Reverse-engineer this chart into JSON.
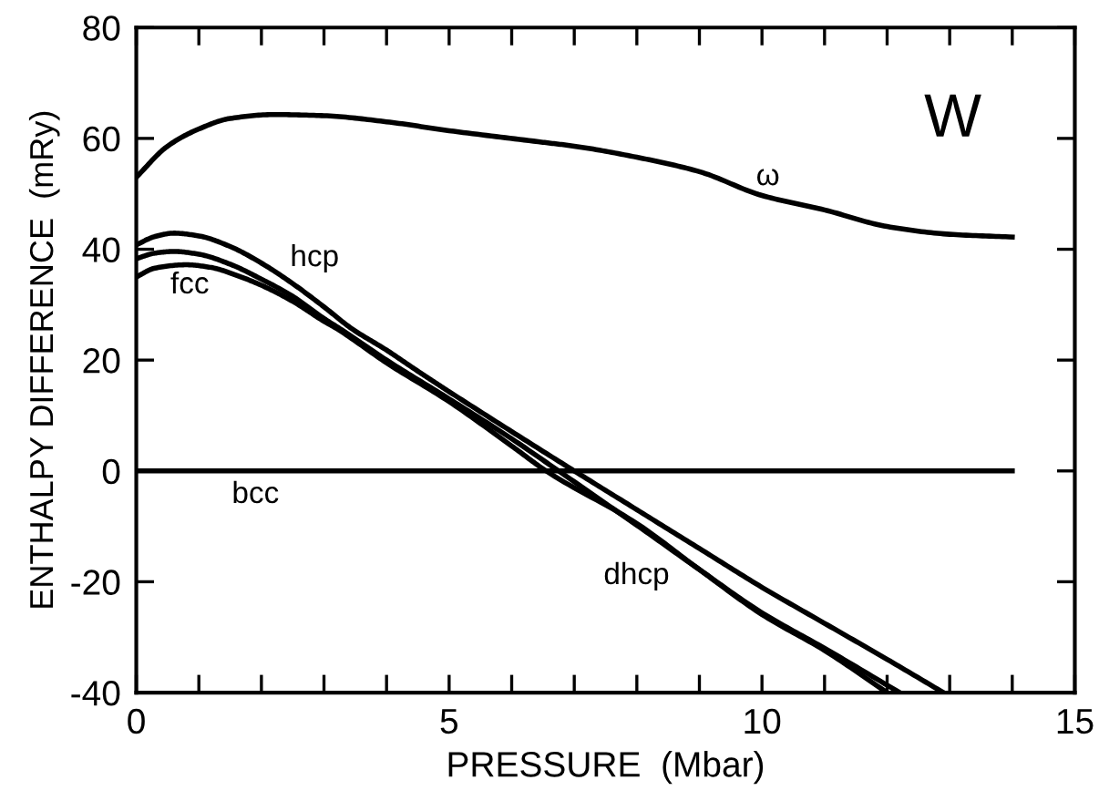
{
  "chart_data": {
    "type": "line",
    "xlabel": "PRESSURE  (Mbar)",
    "ylabel": "ENTHALPY DIFFERENCE  (mRy)",
    "xlim": [
      0,
      15
    ],
    "ylim": [
      -40,
      80
    ],
    "xticks": [
      0,
      {
        "value": 1,
        "label": null
      },
      {
        "value": 2,
        "label": null
      },
      {
        "value": 3,
        "label": null
      },
      {
        "value": 4,
        "label": null
      },
      5,
      {
        "value": 6,
        "label": null
      },
      {
        "value": 7,
        "label": null
      },
      {
        "value": 8,
        "label": null
      },
      {
        "value": 9,
        "label": null
      },
      10,
      {
        "value": 11,
        "label": null
      },
      {
        "value": 12,
        "label": null
      },
      {
        "value": 13,
        "label": null
      },
      {
        "value": 14,
        "label": null
      },
      15
    ],
    "yticks": [
      -40,
      -20,
      0,
      20,
      40,
      60,
      80
    ],
    "grid": false,
    "marker": "none",
    "line_style": "solid",
    "series": [
      {
        "name": "ω",
        "color": "#000000",
        "x": [
          0,
          0.5,
          1,
          1.5,
          2.2,
          3,
          4,
          5,
          6.5,
          7,
          8,
          9,
          10,
          11,
          12,
          13,
          14
        ],
        "values": [
          53,
          58.6,
          61.7,
          63.6,
          64.3,
          64.1,
          63,
          61.4,
          59.3,
          58.6,
          56.6,
          54,
          49.7,
          47.1,
          44.1,
          42.7,
          42.2
        ]
      },
      {
        "name": "hcp",
        "color": "#000000",
        "x": [
          0,
          0.3,
          0.6,
          1,
          1.5,
          2,
          2.5,
          3,
          3.44,
          4,
          4.5,
          5,
          6,
          7,
          8,
          9,
          10,
          11,
          12,
          12.9
        ],
        "values": [
          40.8,
          42.3,
          42.9,
          42.4,
          40.5,
          37.5,
          33.8,
          29.6,
          25.7,
          21.8,
          18,
          14.3,
          7.1,
          0,
          -7,
          -14,
          -21,
          -27.5,
          -34,
          -40
        ]
      },
      {
        "name": "dhcp",
        "color": "#000000",
        "x": [
          0,
          0.3,
          0.6,
          1,
          1.5,
          2,
          2.5,
          3,
          3.25,
          4,
          5,
          6,
          6.75,
          8,
          9,
          10,
          11,
          12.2
        ],
        "values": [
          38.3,
          39.3,
          39.6,
          39.1,
          37.3,
          34.6,
          31.5,
          27.5,
          25.7,
          20,
          13,
          5.8,
          0,
          -9.8,
          -17.8,
          -25.6,
          -32,
          -40
        ]
      },
      {
        "name": "fcc",
        "color": "#000000",
        "x": [
          0,
          0.3,
          0.8,
          1.2,
          1.6,
          2,
          2.5,
          3,
          3.2,
          4,
          5,
          6,
          6.55,
          8,
          9,
          10,
          11,
          12
        ],
        "values": [
          35,
          36.6,
          37.2,
          36.7,
          35.3,
          33.5,
          30.6,
          27,
          25.7,
          19.5,
          12.5,
          4.5,
          0,
          -9.5,
          -17.8,
          -25.9,
          -32.4,
          -40
        ]
      },
      {
        "name": "bcc",
        "color": "#000000",
        "x": [
          0,
          14
        ],
        "values": [
          0,
          0
        ]
      }
    ],
    "annotations": [
      "W"
    ]
  }
}
